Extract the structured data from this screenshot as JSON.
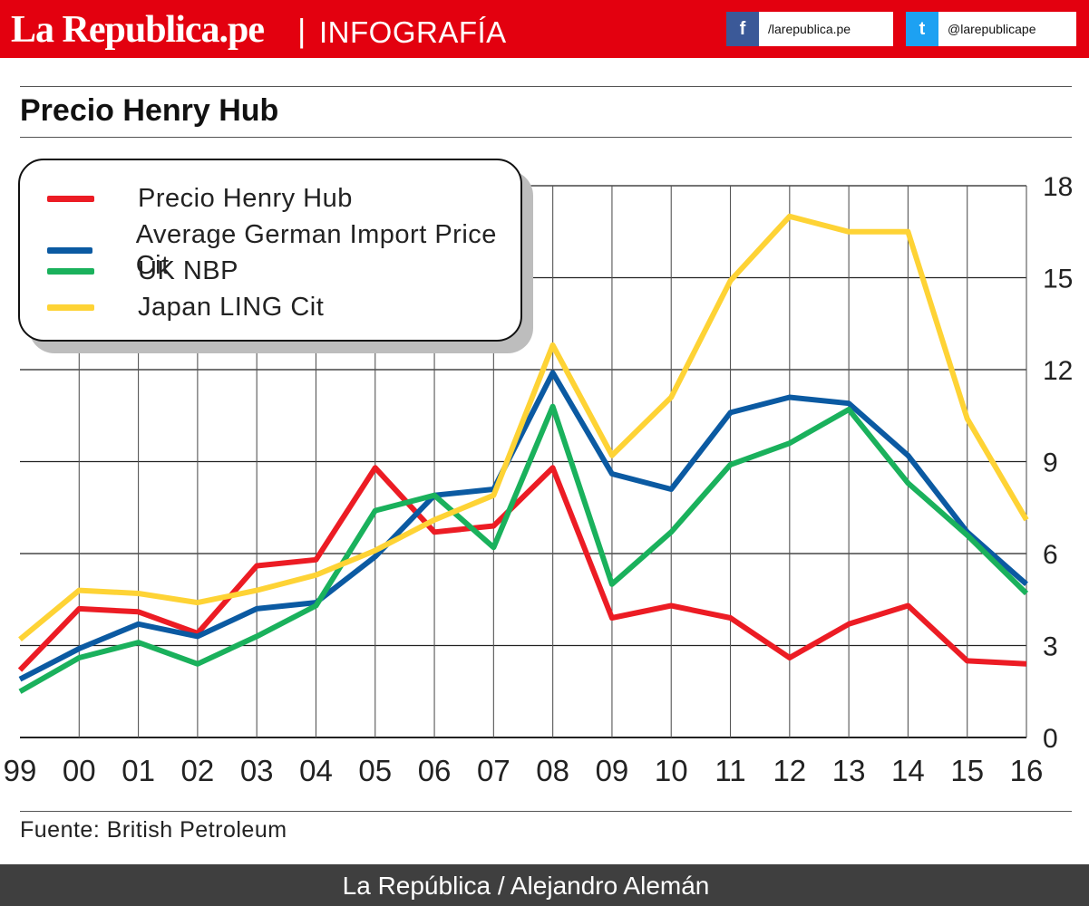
{
  "header": {
    "brand": "La Republica.pe",
    "separator": "|",
    "section": "INFOGRAFÍA",
    "facebook": {
      "icon": "facebook-icon",
      "glyph": "f",
      "label": "/larepublica.pe",
      "color": "#3b5998"
    },
    "twitter": {
      "icon": "twitter-icon",
      "glyph": "t",
      "label": "@larepublicape",
      "color": "#1da1f2"
    },
    "color": "#e3000f"
  },
  "title": "Precio Henry Hub",
  "chart_data": {
    "type": "line",
    "title": "Precio Henry Hub",
    "xlabel": "",
    "ylabel": "",
    "categories": [
      "99",
      "00",
      "01",
      "02",
      "03",
      "04",
      "05",
      "06",
      "07",
      "08",
      "09",
      "10",
      "11",
      "12",
      "13",
      "14",
      "15",
      "16"
    ],
    "ylim": [
      0,
      18
    ],
    "yticks": [
      0,
      3,
      6,
      9,
      12,
      15,
      18
    ],
    "grid": true,
    "legend_position": "top-left",
    "series": [
      {
        "name": "Precio Henry Hub",
        "color": "#ec1c24",
        "values": [
          2.2,
          4.2,
          4.1,
          3.4,
          5.6,
          5.8,
          8.8,
          6.7,
          6.9,
          8.8,
          3.9,
          4.3,
          3.9,
          2.6,
          3.7,
          4.3,
          2.5,
          2.4
        ]
      },
      {
        "name": "Average German Import Price Cit",
        "color": "#0b5aa2",
        "values": [
          1.9,
          2.9,
          3.7,
          3.3,
          4.2,
          4.4,
          5.9,
          7.9,
          8.1,
          11.9,
          8.6,
          8.1,
          10.6,
          11.1,
          10.9,
          9.2,
          6.7,
          5.0
        ]
      },
      {
        "name": "UK NBP",
        "color": "#1ab15c",
        "values": [
          1.5,
          2.6,
          3.1,
          2.4,
          3.3,
          4.3,
          7.4,
          7.9,
          6.2,
          10.8,
          5.0,
          6.7,
          8.9,
          9.6,
          10.7,
          8.3,
          6.6,
          4.7
        ]
      },
      {
        "name": "Japan LING Cit",
        "color": "#fed335",
        "values": [
          3.2,
          4.8,
          4.7,
          4.4,
          4.8,
          5.3,
          6.1,
          7.1,
          7.9,
          12.8,
          9.2,
          11.1,
          14.9,
          17.0,
          16.5,
          16.5,
          10.4,
          7.1
        ]
      }
    ]
  },
  "footer": {
    "source": "Fuente: British Petroleum",
    "credit": "La República / Alejandro Alemán"
  }
}
